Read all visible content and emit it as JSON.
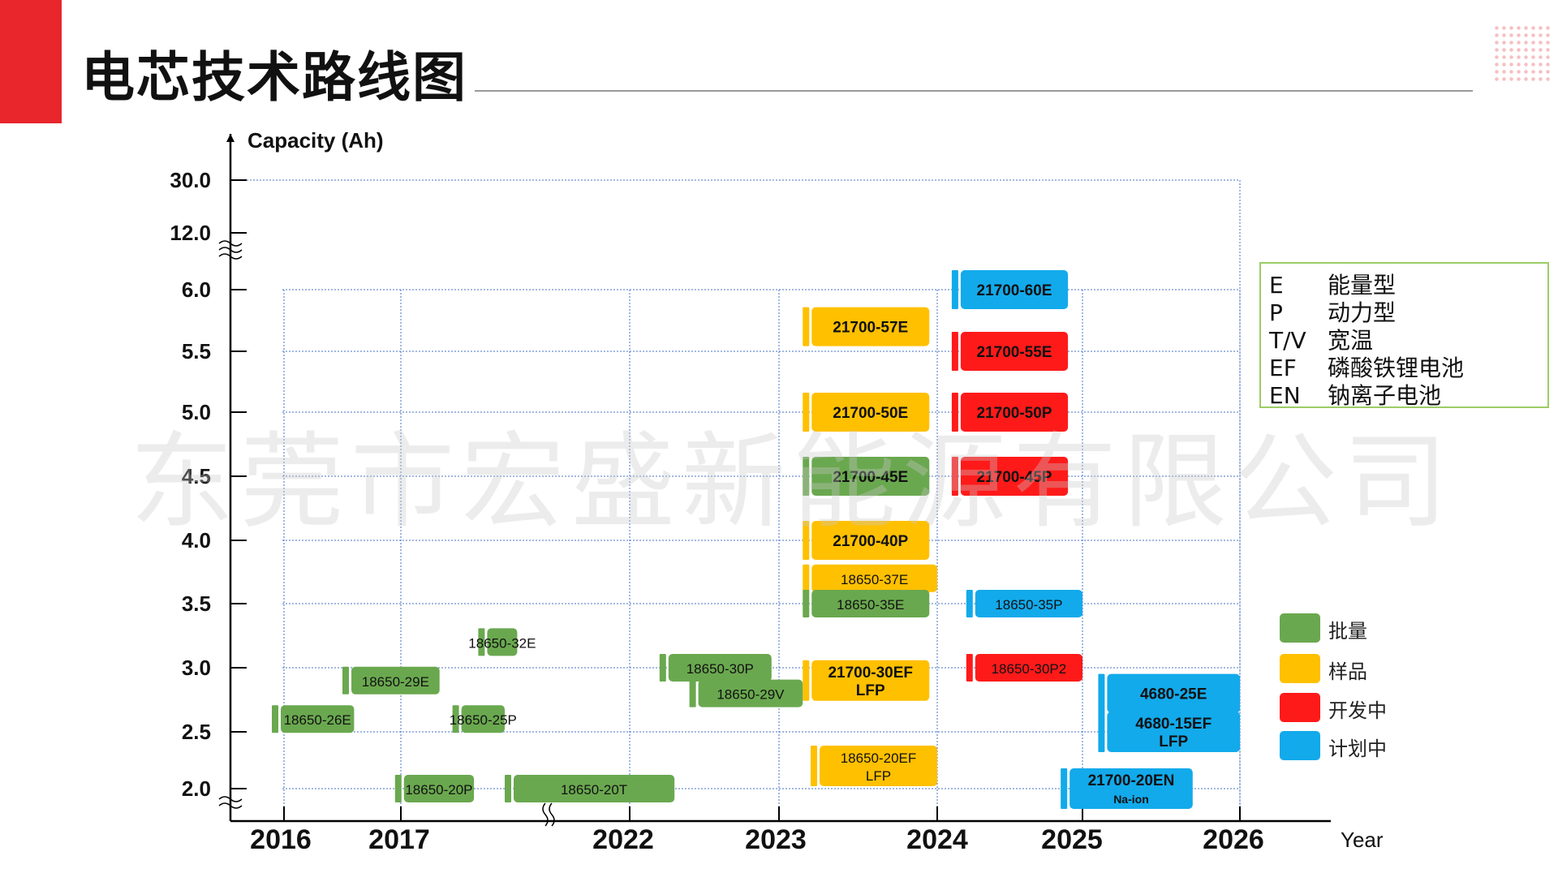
{
  "title": "电芯技术路线图",
  "watermark": "东莞市宏盛新能源有限公司",
  "chart_data": {
    "type": "gantt",
    "ylabel": "Capacity (Ah)",
    "xlabel": "Year",
    "y_ticks": [
      "30.0",
      "12.0",
      "6.0",
      "5.5",
      "5.0",
      "4.5",
      "4.0",
      "3.5",
      "3.0",
      "2.5",
      "2.0"
    ],
    "x_ticks": [
      "2016",
      "2017",
      "2022",
      "2023",
      "2024",
      "2025",
      "2026"
    ],
    "status_colors": {
      "mass": "#6aa84f",
      "sample": "#ffc000",
      "dev": "#ff1a1a",
      "plan": "#12aaeb"
    },
    "items": [
      {
        "label": "21700-60E",
        "capacity": 6.0,
        "start": 2024.1,
        "end": 2024.9,
        "status": "plan"
      },
      {
        "label": "21700-57E",
        "capacity": 5.7,
        "start": 2023.15,
        "end": 2023.95,
        "status": "sample"
      },
      {
        "label": "21700-55E",
        "capacity": 5.5,
        "start": 2024.1,
        "end": 2024.9,
        "status": "dev"
      },
      {
        "label": "21700-50E",
        "capacity": 5.0,
        "start": 2023.15,
        "end": 2023.95,
        "status": "sample"
      },
      {
        "label": "21700-50P",
        "capacity": 5.0,
        "start": 2024.1,
        "end": 2024.9,
        "status": "dev"
      },
      {
        "label": "21700-45E",
        "capacity": 4.5,
        "start": 2023.15,
        "end": 2023.95,
        "status": "mass"
      },
      {
        "label": "21700-45P",
        "capacity": 4.5,
        "start": 2024.1,
        "end": 2024.9,
        "status": "dev"
      },
      {
        "label": "21700-40P",
        "capacity": 4.0,
        "start": 2023.15,
        "end": 2023.95,
        "status": "sample"
      },
      {
        "label": "18650-37E",
        "capacity": 3.7,
        "start": 2023.15,
        "end": 2024.0,
        "status": "sample"
      },
      {
        "label": "18650-35P",
        "capacity": 3.5,
        "start": 2024.2,
        "end": 2025.0,
        "status": "plan"
      },
      {
        "label": "18650-35E",
        "capacity": 3.5,
        "start": 2023.15,
        "end": 2023.95,
        "status": "mass"
      },
      {
        "label": "18650-32E",
        "capacity": 3.2,
        "start": 2017.9,
        "end": 2018.85,
        "status": "mass"
      },
      {
        "label": "18650-30P",
        "capacity": 3.0,
        "start": 2022.2,
        "end": 2022.95,
        "status": "mass"
      },
      {
        "label": "18650-30P2",
        "capacity": 3.0,
        "start": 2024.2,
        "end": 2025.0,
        "status": "dev"
      },
      {
        "label": "21700-30EF LFP",
        "capacity": 2.9,
        "start": 2023.15,
        "end": 2023.95,
        "status": "sample"
      },
      {
        "label": "18650-29E",
        "capacity": 2.9,
        "start": 2016.5,
        "end": 2017.45,
        "status": "mass"
      },
      {
        "label": "18650-29V",
        "capacity": 2.8,
        "start": 2022.4,
        "end": 2023.15,
        "status": "mass"
      },
      {
        "label": "4680-25E",
        "capacity": 2.8,
        "start": 2025.1,
        "end": 2026.0,
        "status": "plan"
      },
      {
        "label": "18650-26E",
        "capacity": 2.6,
        "start": 2015.85,
        "end": 2016.6,
        "status": "mass"
      },
      {
        "label": "18650-25P",
        "capacity": 2.6,
        "start": 2017.6,
        "end": 2018.5,
        "status": "mass"
      },
      {
        "label": "4680-15EF LFP",
        "capacity": 2.5,
        "start": 2025.1,
        "end": 2026.0,
        "status": "plan"
      },
      {
        "label": "18650-20EF LFP",
        "capacity": 2.2,
        "start": 2023.2,
        "end": 2024.0,
        "status": "sample"
      },
      {
        "label": "18650-20P",
        "capacity": 2.0,
        "start": 2016.95,
        "end": 2017.85,
        "status": "mass"
      },
      {
        "label": "18650-20T",
        "capacity": 2.0,
        "start": 2018.5,
        "end": 2022.3,
        "status": "mass"
      },
      {
        "label": "21700-20EN Na-ion",
        "capacity": 2.0,
        "start": 2024.85,
        "end": 2025.7,
        "status": "plan"
      }
    ]
  },
  "legend": {
    "abbreviations": [
      {
        "abbr": "E",
        "meaning": "能量型"
      },
      {
        "abbr": "P",
        "meaning": "动力型"
      },
      {
        "abbr": "T/V",
        "meaning": "宽温"
      },
      {
        "abbr": "EF",
        "meaning": "磷酸铁锂电池"
      },
      {
        "abbr": "EN",
        "meaning": "钠离子电池"
      }
    ],
    "status": [
      {
        "key": "mass",
        "label": "批量",
        "color": "#6aa84f"
      },
      {
        "key": "sample",
        "label": "样品",
        "color": "#ffc000"
      },
      {
        "key": "dev",
        "label": "开发中",
        "color": "#ff1a1a"
      },
      {
        "key": "plan",
        "label": "计划中",
        "color": "#12aaeb"
      }
    ]
  }
}
